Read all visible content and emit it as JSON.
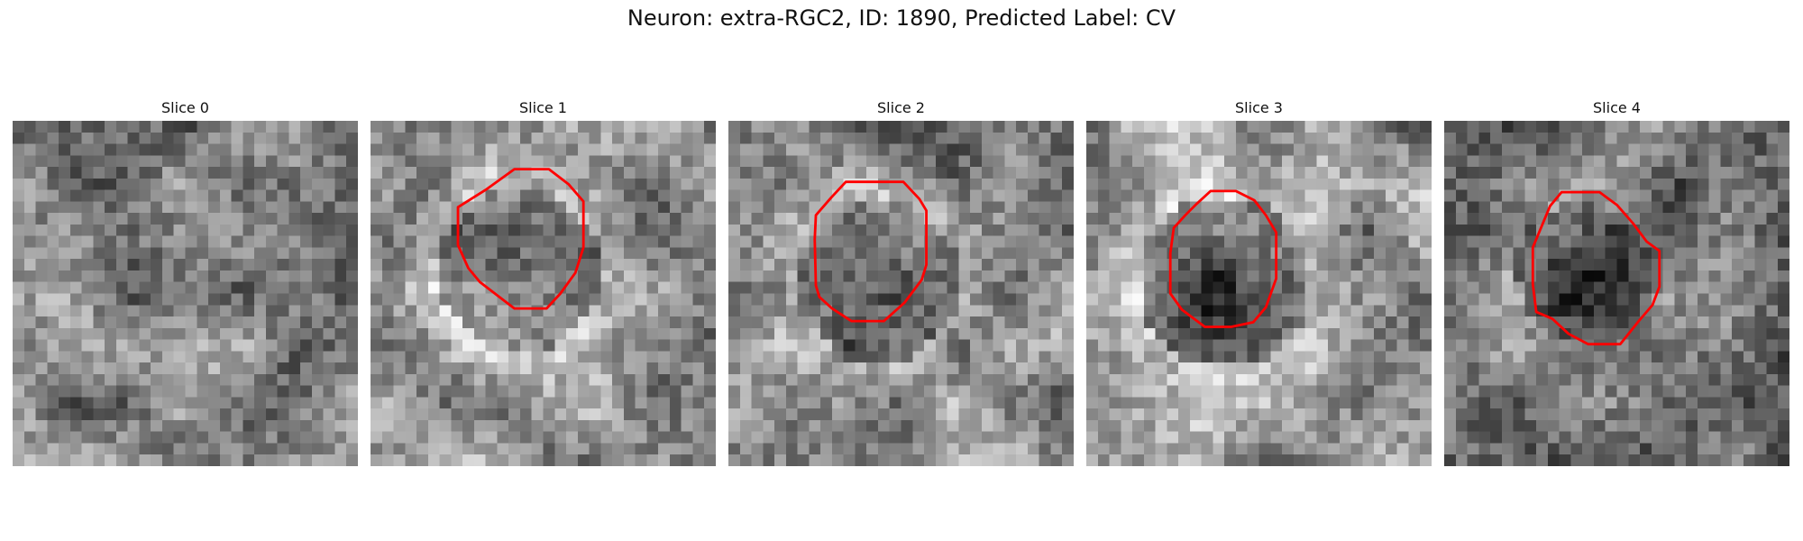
{
  "figure": {
    "title": "Neuron: extra-RGC2, ID: 1890, Predicted Label: CV",
    "panels": [
      {
        "title": "Slice 0",
        "has_contour": false
      },
      {
        "title": "Slice 1",
        "has_contour": true
      },
      {
        "title": "Slice 2",
        "has_contour": true
      },
      {
        "title": "Slice 3",
        "has_contour": true
      },
      {
        "title": "Slice 4",
        "has_contour": true
      }
    ],
    "colormap": "grayscale",
    "contour_color": "#ff0000"
  }
}
